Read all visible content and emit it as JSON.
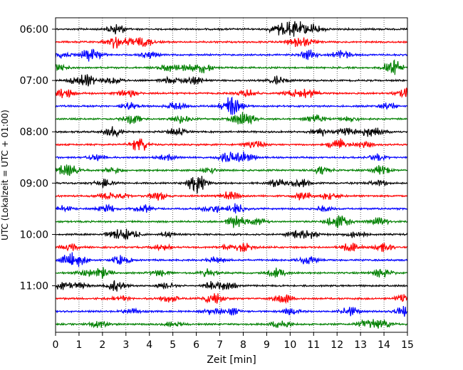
{
  "chart_data": {
    "type": "line",
    "title": "",
    "xlabel": "Zeit  [min]",
    "ylabel": "UTC (Lokalzeit = UTC + 01:00)",
    "xlim": [
      0,
      15
    ],
    "x_ticks": [
      "0",
      "1",
      "2",
      "3",
      "4",
      "5",
      "6",
      "7",
      "8",
      "9",
      "10",
      "11",
      "12",
      "13",
      "14",
      "15"
    ],
    "y_ticks": [
      "06:00",
      "07:00",
      "08:00",
      "09:00",
      "10:00",
      "11:00"
    ],
    "grid": "vertical dotted lines at each minute",
    "trace_interval_min": 15,
    "trace_color_cycle": [
      "#000000",
      "#ff0000",
      "#0000ff",
      "#008000"
    ],
    "traces": [
      {
        "start": "06:00",
        "color": "#000000"
      },
      {
        "start": "06:15",
        "color": "#ff0000"
      },
      {
        "start": "06:30",
        "color": "#0000ff"
      },
      {
        "start": "06:45",
        "color": "#008000"
      },
      {
        "start": "07:00",
        "color": "#000000"
      },
      {
        "start": "07:15",
        "color": "#ff0000"
      },
      {
        "start": "07:30",
        "color": "#0000ff"
      },
      {
        "start": "07:45",
        "color": "#008000"
      },
      {
        "start": "08:00",
        "color": "#000000"
      },
      {
        "start": "08:15",
        "color": "#ff0000"
      },
      {
        "start": "08:30",
        "color": "#0000ff"
      },
      {
        "start": "08:45",
        "color": "#008000"
      },
      {
        "start": "09:00",
        "color": "#000000"
      },
      {
        "start": "09:15",
        "color": "#ff0000"
      },
      {
        "start": "09:30",
        "color": "#0000ff"
      },
      {
        "start": "09:45",
        "color": "#008000"
      },
      {
        "start": "10:00",
        "color": "#000000"
      },
      {
        "start": "10:15",
        "color": "#ff0000"
      },
      {
        "start": "10:30",
        "color": "#0000ff"
      },
      {
        "start": "10:45",
        "color": "#008000"
      },
      {
        "start": "11:00",
        "color": "#000000"
      },
      {
        "start": "11:15",
        "color": "#ff0000"
      },
      {
        "start": "11:30",
        "color": "#0000ff"
      },
      {
        "start": "11:45",
        "color": "#008000"
      }
    ]
  }
}
